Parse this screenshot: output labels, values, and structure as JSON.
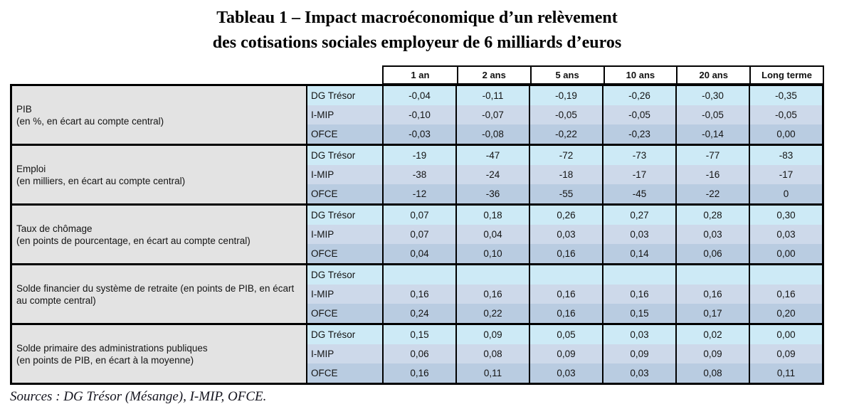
{
  "title": {
    "line1": "Tableau 1 – Impact macroéconomique d’un relèvement",
    "line2": "des cotisations sociales employeur de 6 milliards d’euros"
  },
  "table": {
    "column_headers": [
      "1 an",
      "2 ans",
      "5 ans",
      "10 ans",
      "20 ans",
      "Long terme"
    ],
    "groups": [
      {
        "indicator": "PIB",
        "indicator_note": "(en %, en écart au compte central)",
        "rows": [
          {
            "model": "DG Trésor",
            "values": [
              "-0,04",
              "-0,11",
              "-0,19",
              "-0,26",
              "-0,30",
              "-0,35"
            ]
          },
          {
            "model": "I-MIP",
            "values": [
              "-0,10",
              "-0,07",
              "-0,05",
              "-0,05",
              "-0,05",
              "-0,05"
            ]
          },
          {
            "model": "OFCE",
            "values": [
              "-0,03",
              "-0,08",
              "-0,22",
              "-0,23",
              "-0,14",
              "0,00"
            ]
          }
        ]
      },
      {
        "indicator": "Emploi",
        "indicator_note": "(en milliers, en écart au compte central)",
        "rows": [
          {
            "model": "DG Trésor",
            "values": [
              "-19",
              "-47",
              "-72",
              "-73",
              "-77",
              "-83"
            ]
          },
          {
            "model": "I-MIP",
            "values": [
              "-38",
              "-24",
              "-18",
              "-17",
              "-16",
              "-17"
            ]
          },
          {
            "model": "OFCE",
            "values": [
              "-12",
              "-36",
              "-55",
              "-45",
              "-22",
              "0"
            ]
          }
        ]
      },
      {
        "indicator": "Taux de chômage",
        "indicator_note": "(en points de pourcentage, en écart au compte central)",
        "rows": [
          {
            "model": "DG Trésor",
            "values": [
              "0,07",
              "0,18",
              "0,26",
              "0,27",
              "0,28",
              "0,30"
            ]
          },
          {
            "model": "I-MIP",
            "values": [
              "0,07",
              "0,04",
              "0,03",
              "0,03",
              "0,03",
              "0,03"
            ]
          },
          {
            "model": "OFCE",
            "values": [
              "0,04",
              "0,10",
              "0,16",
              "0,14",
              "0,06",
              "0,00"
            ]
          }
        ]
      },
      {
        "indicator": "Solde financier du système de retraite (en points de PIB, en écart au compte central)",
        "indicator_note": "",
        "rows": [
          {
            "model": "DG Trésor",
            "values": [
              "",
              "",
              "",
              "",
              "",
              ""
            ]
          },
          {
            "model": "I-MIP",
            "values": [
              "0,16",
              "0,16",
              "0,16",
              "0,16",
              "0,16",
              "0,16"
            ]
          },
          {
            "model": "OFCE",
            "values": [
              "0,24",
              "0,22",
              "0,16",
              "0,15",
              "0,17",
              "0,20"
            ]
          }
        ]
      },
      {
        "indicator": "Solde primaire des administrations publiques",
        "indicator_note": "(en points de PIB, en écart à la moyenne)",
        "rows": [
          {
            "model": "DG Trésor",
            "values": [
              "0,15",
              "0,09",
              "0,05",
              "0,03",
              "0,02",
              "0,00"
            ]
          },
          {
            "model": "I-MIP",
            "values": [
              "0,06",
              "0,08",
              "0,09",
              "0,09",
              "0,09",
              "0,09"
            ]
          },
          {
            "model": "OFCE",
            "values": [
              "0,16",
              "0,11",
              "0,03",
              "0,03",
              "0,08",
              "0,11"
            ]
          }
        ]
      }
    ]
  },
  "footer": {
    "sources": "Sources : DG Trésor (Mésange), I-MIP, OFCE."
  },
  "colors": {
    "row_dg_tresor": "#cdeaf6",
    "row_imip": "#cdd9ea",
    "row_ofce": "#b9cce1",
    "indicator_bg": "#e3e3e3",
    "border": "#000000",
    "header_bg": "#ffffff"
  }
}
